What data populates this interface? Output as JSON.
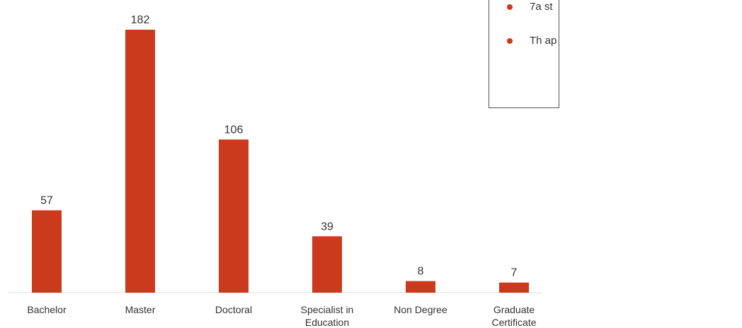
{
  "colors": {
    "bar": "#cc3a1e",
    "bullet": "#cc3a1e",
    "axis": "#dddddd",
    "text": "#333333"
  },
  "notes": [
    {
      "icon": "bullet-dot",
      "text": "7a st"
    },
    {
      "icon": "bullet-dot",
      "text": "Th ap"
    }
  ],
  "chart_data": {
    "type": "bar",
    "categories": [
      "Bachelor",
      "Master",
      "Doctoral",
      "Specialist in Education",
      "Non Degree",
      "Graduate Certificate"
    ],
    "category_lines": [
      [
        "Bachelor"
      ],
      [
        "Master"
      ],
      [
        "Doctoral"
      ],
      [
        "Specialist in",
        "Education"
      ],
      [
        "Non Degree"
      ],
      [
        "Graduate",
        "Certificate"
      ]
    ],
    "values": [
      57,
      182,
      106,
      39,
      8,
      7
    ],
    "ylim": [
      0,
      182
    ],
    "data_labels": true,
    "grid": false,
    "legend": "none"
  }
}
